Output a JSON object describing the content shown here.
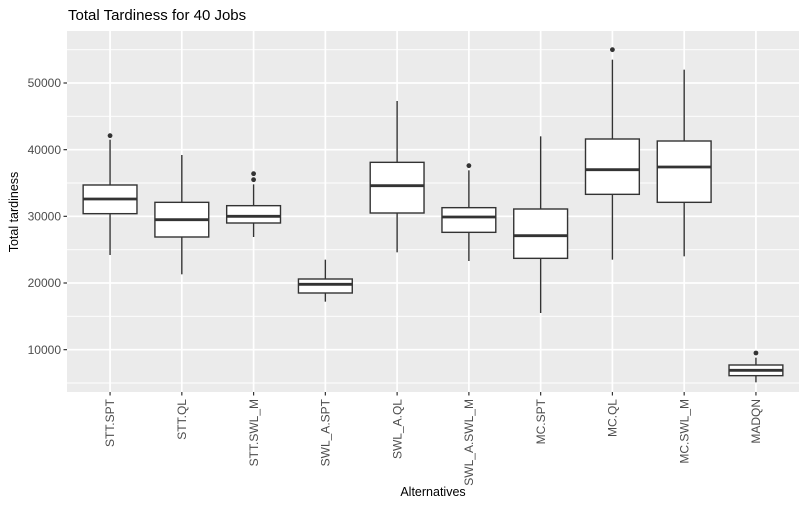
{
  "colors": {
    "panel_bg": "#EBEBEB",
    "gridline": "#FFFFFF",
    "box_fill": "#FFFFFF",
    "box_border": "#333333",
    "median": "#333333",
    "outlier": "#333333",
    "tick_mark": "#333333",
    "tick_label": "#4D4D4D",
    "title_text": "#000000"
  },
  "chart_data": {
    "type": "boxplot",
    "title": "Total Tardiness for 40 Jobs",
    "xlabel": "Alternatives",
    "ylabel": "Total tardiness",
    "categories": [
      "STT.SPT",
      "STT.QL",
      "STT.SWL_M",
      "SWL_A.SPT",
      "SWL_A.QL",
      "SWL_A.SWL_M",
      "MC.SPT",
      "MC.QL",
      "MC.SWL_M",
      "MADQN"
    ],
    "boxes": [
      {
        "category": "STT.SPT",
        "whisker_low": 24200,
        "q1": 30400,
        "median": 32600,
        "q3": 34700,
        "whisker_high": 41500,
        "outliers": [
          42100
        ]
      },
      {
        "category": "STT.QL",
        "whisker_low": 21300,
        "q1": 26900,
        "median": 29500,
        "q3": 32100,
        "whisker_high": 39200,
        "outliers": []
      },
      {
        "category": "STT.SWL_M",
        "whisker_low": 26900,
        "q1": 29000,
        "median": 30000,
        "q3": 31600,
        "whisker_high": 34800,
        "outliers": [
          35500,
          36400
        ]
      },
      {
        "category": "SWL_A.SPT",
        "whisker_low": 17200,
        "q1": 18500,
        "median": 19800,
        "q3": 20600,
        "whisker_high": 23500,
        "outliers": []
      },
      {
        "category": "SWL_A.QL",
        "whisker_low": 24600,
        "q1": 30500,
        "median": 34600,
        "q3": 38100,
        "whisker_high": 47300,
        "outliers": []
      },
      {
        "category": "SWL_A.SWL_M",
        "whisker_low": 23300,
        "q1": 27600,
        "median": 29900,
        "q3": 31300,
        "whisker_high": 36900,
        "outliers": [
          37600
        ]
      },
      {
        "category": "MC.SPT",
        "whisker_low": 15500,
        "q1": 23700,
        "median": 27100,
        "q3": 31100,
        "whisker_high": 42000,
        "outliers": []
      },
      {
        "category": "MC.QL",
        "whisker_low": 23500,
        "q1": 33300,
        "median": 37000,
        "q3": 41600,
        "whisker_high": 53500,
        "outliers": [
          55000
        ]
      },
      {
        "category": "MC.SWL_M",
        "whisker_low": 24000,
        "q1": 32100,
        "median": 37400,
        "q3": 41300,
        "whisker_high": 52000,
        "outliers": []
      },
      {
        "category": "MADQN",
        "whisker_low": 5100,
        "q1": 6100,
        "median": 6900,
        "q3": 7700,
        "whisker_high": 8800,
        "outliers": [
          9500
        ]
      }
    ],
    "yticks": [
      10000,
      20000,
      30000,
      40000,
      50000
    ],
    "ytick_labels": [
      "10000",
      "20000",
      "30000",
      "40000",
      "50000"
    ],
    "minor_gridlines": [
      5000,
      15000,
      25000,
      35000,
      45000,
      55000
    ],
    "ylim": [
      3650,
      57800
    ],
    "grid": "horizontal major+minor white lines, vertical white line at each category",
    "legend_position": "none"
  }
}
